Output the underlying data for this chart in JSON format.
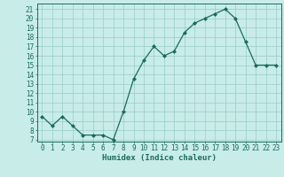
{
  "x": [
    0,
    1,
    2,
    3,
    4,
    5,
    6,
    7,
    8,
    9,
    10,
    11,
    12,
    13,
    14,
    15,
    16,
    17,
    18,
    19,
    20,
    21,
    22,
    23
  ],
  "y": [
    9.5,
    8.5,
    9.5,
    8.5,
    7.5,
    7.5,
    7.5,
    7.0,
    10.0,
    13.5,
    15.5,
    17.0,
    16.0,
    16.5,
    18.5,
    19.5,
    20.0,
    20.5,
    21.0,
    20.0,
    17.5,
    15.0,
    15.0,
    15.0
  ],
  "line_color": "#1a6b5e",
  "marker": "D",
  "marker_size": 2,
  "bg_color": "#c8ece8",
  "grid_color": "#9accc6",
  "xlabel": "Humidex (Indice chaleur)",
  "ylabel_ticks": [
    7,
    8,
    9,
    10,
    11,
    12,
    13,
    14,
    15,
    16,
    17,
    18,
    19,
    20,
    21
  ],
  "ylim": [
    6.8,
    21.6
  ],
  "xlim": [
    -0.5,
    23.5
  ],
  "tick_color": "#1a6b5e",
  "label_fontsize": 6.5,
  "tick_fontsize": 5.5
}
